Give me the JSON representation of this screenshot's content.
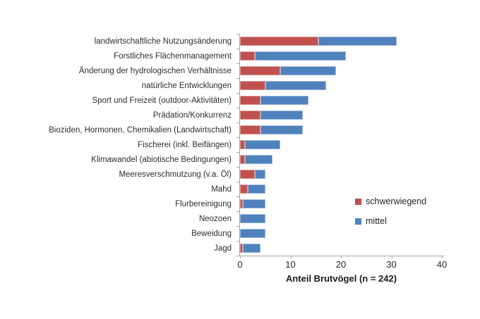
{
  "chart_data": {
    "type": "bar",
    "orientation": "horizontal",
    "stacked": true,
    "title": "",
    "xlabel": "Anteil Brutvögel (n = 242)",
    "ylabel": "",
    "xlim": [
      0,
      40
    ],
    "xticks": [
      0,
      10,
      20,
      30,
      40
    ],
    "grid": false,
    "legend_position": "right-middle",
    "categories": [
      "landwirtschaftliche Nutzungsänderung",
      "Forstliches Flächenmanagement",
      "Änderung der hydrologischen Verhältnisse",
      "natürliche Entwicklungen",
      "Sport und Freizeit (outdoor-Aktivitäten)",
      "Prädation/Konkurrenz",
      "Bioziden, Hormonen, Chemikalien (Landwirtschaft)",
      "Fischerei (inkl. Beifängen)",
      "Klimawandel (abiotische Bedingungen)",
      "Meeresverschmutzung (v.a. Öl)",
      "Mahd",
      "Flurbereinigung",
      "Neozoen",
      "Beweidung",
      "Jagd"
    ],
    "series": [
      {
        "name": "schwerwiegend",
        "color": "#C0504D",
        "values": [
          15.5,
          3,
          8,
          5,
          4,
          4,
          4,
          1,
          1,
          3,
          1.5,
          0.5,
          0,
          0,
          0.5
        ]
      },
      {
        "name": "mittel",
        "color": "#4F81BD",
        "values": [
          15.5,
          18,
          11,
          12,
          9.5,
          8.5,
          8.5,
          7,
          5.5,
          2,
          3.5,
          4.5,
          5,
          5,
          3.5
        ]
      }
    ],
    "totals": [
      31,
      21,
      19,
      17,
      13.5,
      12.5,
      12.5,
      8,
      6.5,
      5,
      5,
      5,
      5,
      5,
      4
    ],
    "axis_color": "#A6A6A6"
  }
}
